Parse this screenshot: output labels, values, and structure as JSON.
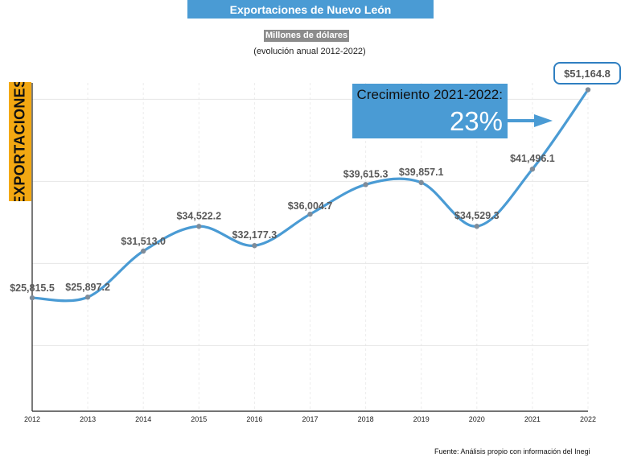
{
  "header": {
    "title": "Exportaciones de Nuevo León",
    "subtitle": "Millones de dólares",
    "caption": "(evolución anual 2012-2022)"
  },
  "y_axis_label": "EXPORTACIONES",
  "growth_callout": {
    "label": "Crecimiento 2021-2022:",
    "value": "23%"
  },
  "source": "Fuente: Análisis propio con información del Inegi",
  "colors": {
    "line": "#4a9bd4",
    "banner": "#4a9bd4",
    "y_label_bg": "#f3a812",
    "subtitle_bg": "#8c8c8c",
    "point": "#7f8c99"
  },
  "chart_data": {
    "type": "line",
    "title": "Exportaciones de Nuevo León",
    "subtitle": "Millones de dólares",
    "ylabel": "EXPORTACIONES",
    "xlabel": "",
    "x": [
      "2012",
      "2013",
      "2014",
      "2015",
      "2016",
      "2017",
      "2018",
      "2019",
      "2020",
      "2021",
      "2022"
    ],
    "series": [
      {
        "name": "Exportaciones",
        "values": [
          25815.5,
          25897.2,
          31513.0,
          34522.2,
          32177.3,
          36004.7,
          39615.3,
          39857.1,
          34529.3,
          41496.1,
          51164.8
        ]
      }
    ],
    "labels": [
      "$25,815.5",
      "$25,897.2",
      "$31,513.0",
      "$34,522.2",
      "$32,177.3",
      "$36,004.7",
      "$39,615.3",
      "$39,857.1",
      "$34,529.3",
      "$41,496.1",
      "$51,164.8"
    ],
    "ylim": [
      12000,
      52000
    ],
    "grid": true,
    "smooth": true
  }
}
